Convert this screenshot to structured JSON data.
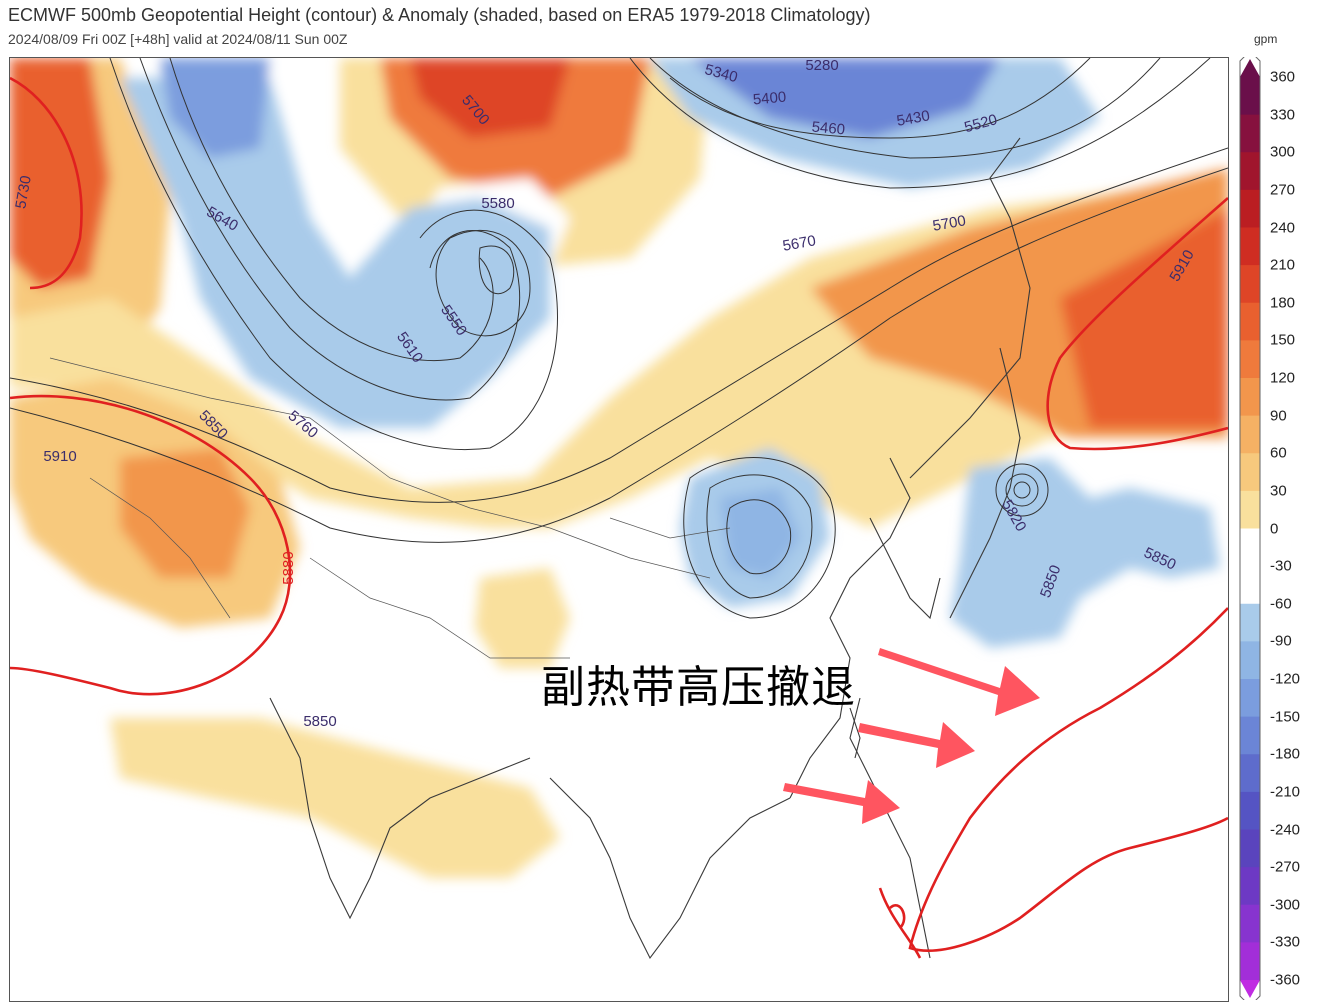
{
  "header": {
    "title": "ECMWF 500mb Geopotential Height (contour) & Anomaly (shaded, based on ERA5 1979-2018 Climatology)",
    "subtitle": "2024/08/09 Fri 00Z [+48h] valid at 2024/08/11 Sun 00Z"
  },
  "annotation": "副热带高压撤退",
  "contour_labels": [
    "5730",
    "5640",
    "5550",
    "5610",
    "5580",
    "5700",
    "5760",
    "5850",
    "5910",
    "5880",
    "5670",
    "5460",
    "5430",
    "5400",
    "5340",
    "5280",
    "5520",
    "5820"
  ],
  "colorbar": {
    "unit": "gpm",
    "ticks": [
      "360",
      "330",
      "300",
      "270",
      "240",
      "210",
      "180",
      "150",
      "120",
      "90",
      "60",
      "30",
      "0",
      "-30",
      "-60",
      "-90",
      "-120",
      "-150",
      "-180",
      "-210",
      "-240",
      "-270",
      "-300",
      "-330",
      "-360"
    ],
    "colors": [
      "#6a0f4a",
      "#86113e",
      "#a0152d",
      "#bb1e22",
      "#cf2d22",
      "#de4527",
      "#e9602f",
      "#ef7a3c",
      "#f2964c",
      "#f5b164",
      "#f7c97d",
      "#f9e09d",
      "#ffffff",
      "#ffffff",
      "#a9cbea",
      "#8fb5e4",
      "#7b9dde",
      "#6b85d6",
      "#5e6ccc",
      "#5554c3",
      "#5a44bd",
      "#6d39c4",
      "#8734cf",
      "#a22ed8",
      "#c02be2"
    ]
  },
  "colors": {
    "subtropical_high_contour": "#e02020",
    "arrow": "#ff5560",
    "contour": "#333333"
  }
}
